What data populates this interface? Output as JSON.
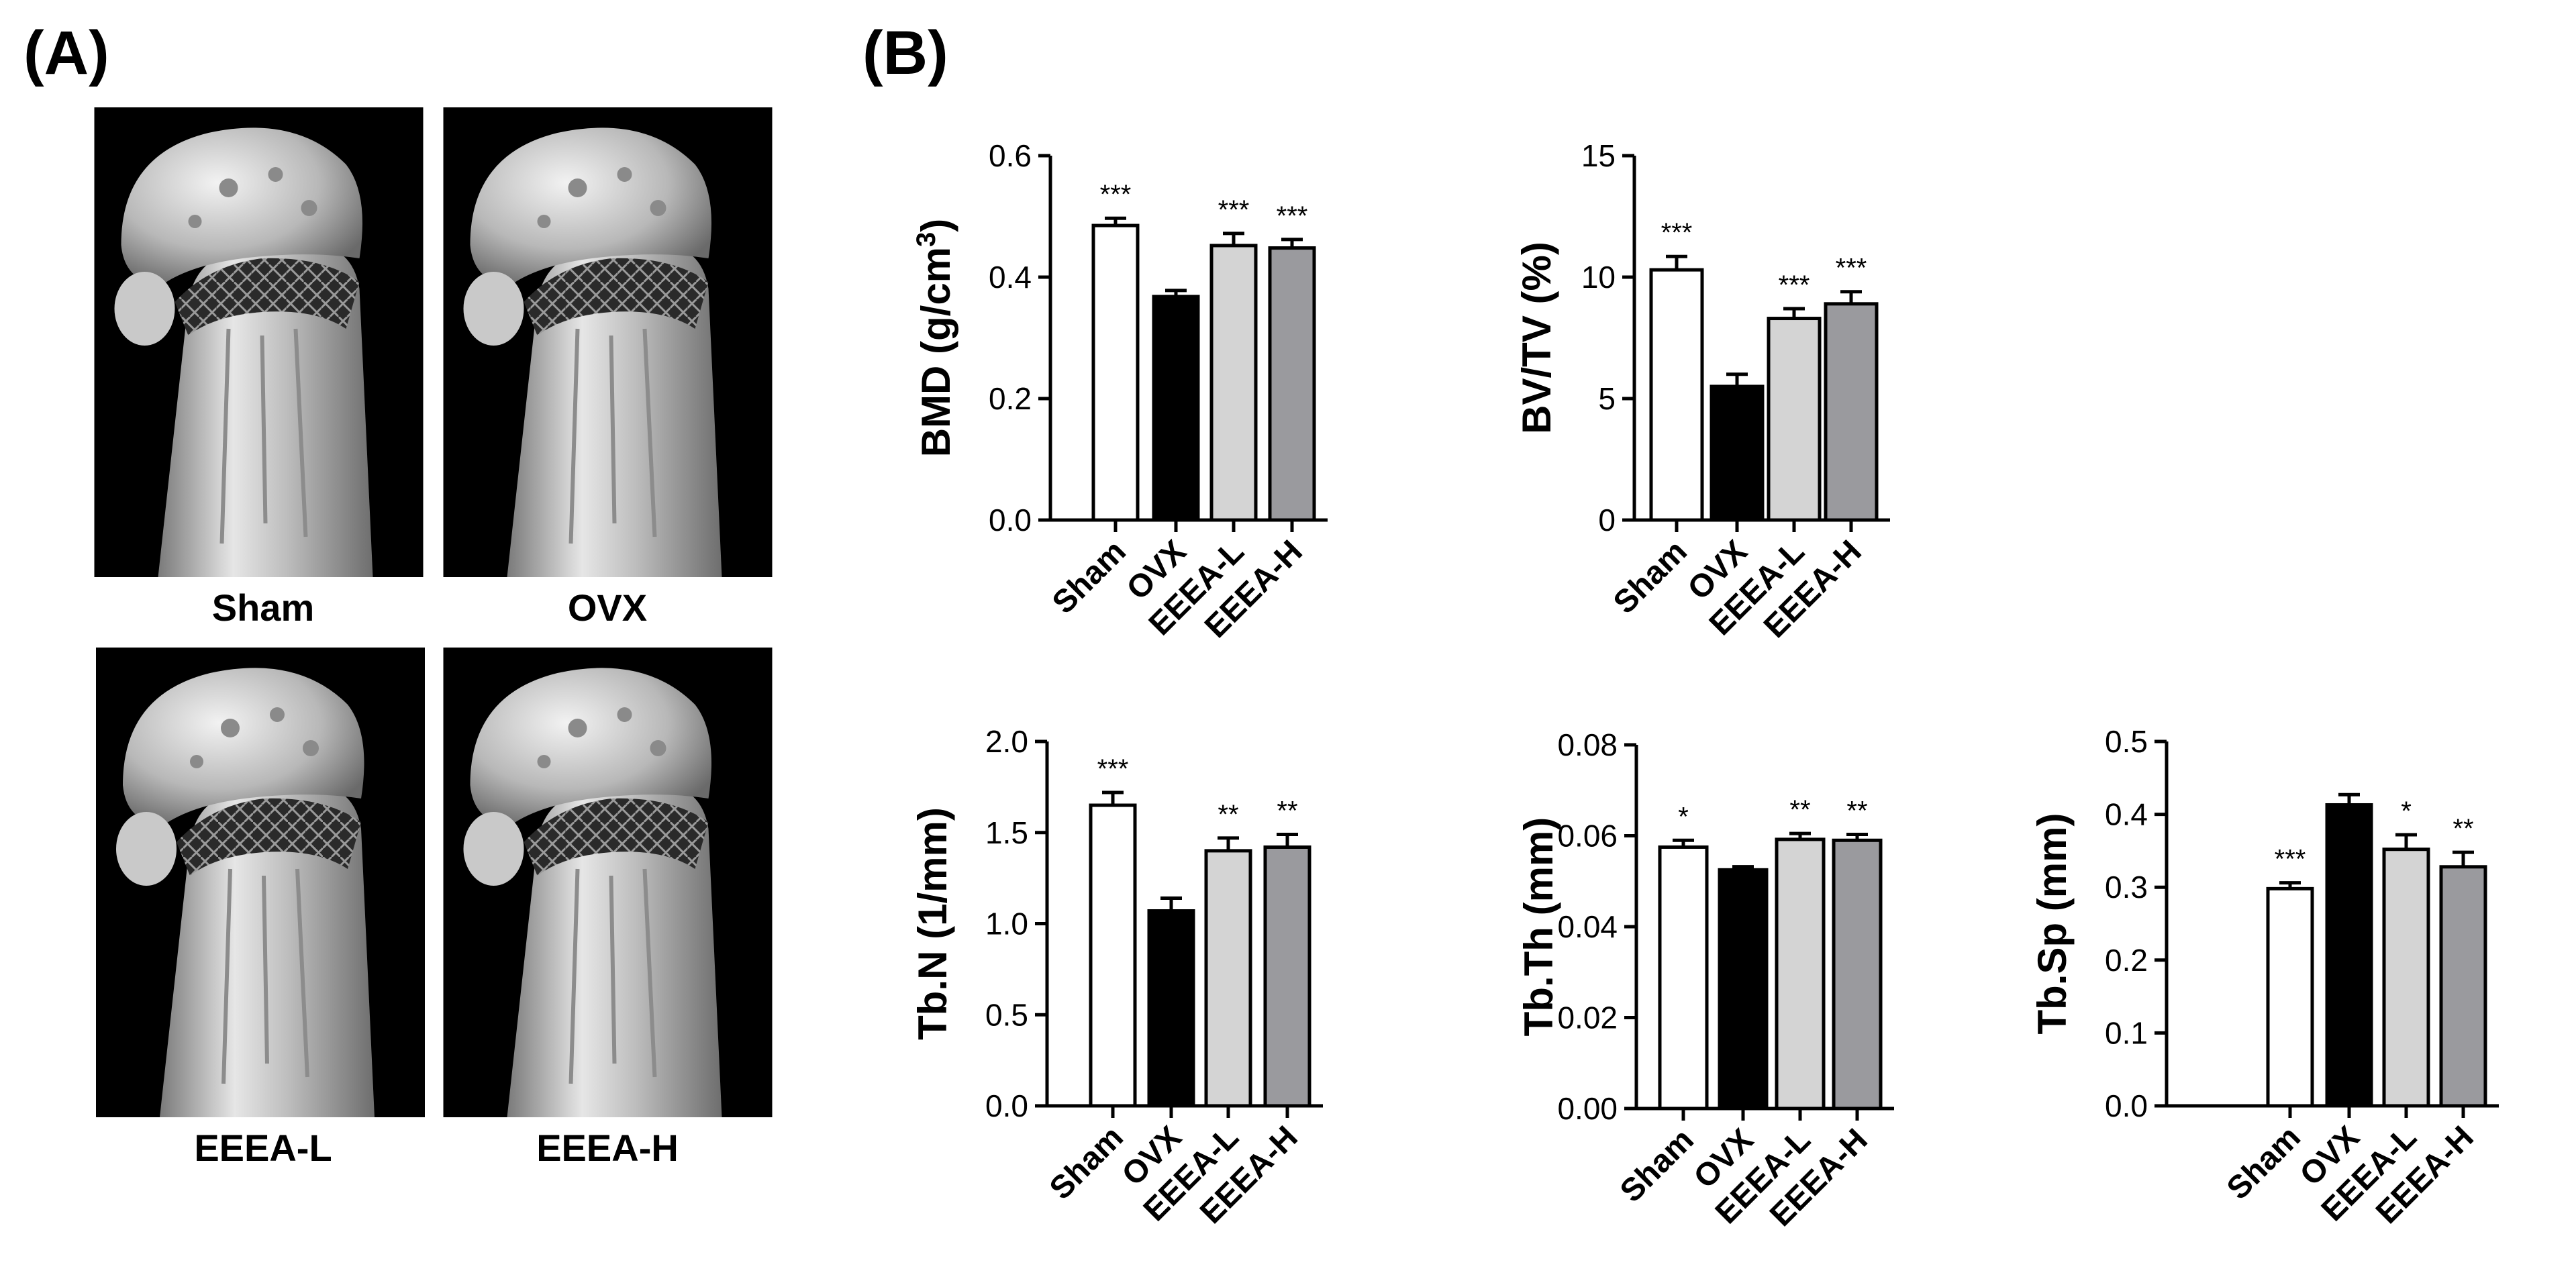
{
  "panels": {
    "a_label": "(A)",
    "b_label": "(B)"
  },
  "micro_ct": {
    "images": [
      {
        "caption": "Sham",
        "icon": "femur-micro-ct-image"
      },
      {
        "caption": "OVX",
        "icon": "femur-micro-ct-image"
      },
      {
        "caption": "EEEA-L",
        "icon": "femur-micro-ct-image"
      },
      {
        "caption": "EEEA-H",
        "icon": "femur-micro-ct-image"
      }
    ]
  },
  "colors": {
    "Sham": "#ffffff",
    "OVX": "#000000",
    "EEEA-L": "#d4d4d4",
    "EEEA-H": "#9a9a9e"
  },
  "chart_data": [
    {
      "type": "bar",
      "ylabel_main": "BMD (g/cm",
      "ylabel_sup": "3",
      "ylabel_tail": ")",
      "categories": [
        "Sham",
        "OVX",
        "EEEA-L",
        "EEEA-H"
      ],
      "values": [
        0.485,
        0.368,
        0.452,
        0.448
      ],
      "errors": [
        0.012,
        0.01,
        0.02,
        0.014
      ],
      "significance": [
        "***",
        "",
        "***",
        "***"
      ],
      "ylim": [
        0,
        0.6
      ],
      "yticks": [
        "0.0",
        "0.2",
        "0.4",
        "0.6"
      ]
    },
    {
      "type": "bar",
      "ylabel": "BV/TV (%)",
      "categories": [
        "Sham",
        "OVX",
        "EEEA-L",
        "EEEA-H"
      ],
      "values": [
        10.3,
        5.5,
        8.3,
        8.9
      ],
      "errors": [
        0.55,
        0.5,
        0.4,
        0.5
      ],
      "significance": [
        "***",
        "",
        "***",
        "***"
      ],
      "ylim": [
        0,
        15
      ],
      "yticks": [
        "0",
        "5",
        "10",
        "15"
      ]
    },
    {
      "type": "bar",
      "ylabel": "Tb.N (1/mm)",
      "categories": [
        "Sham",
        "OVX",
        "EEEA-L",
        "EEEA-H"
      ],
      "values": [
        1.65,
        1.07,
        1.4,
        1.42
      ],
      "errors": [
        0.07,
        0.07,
        0.07,
        0.07
      ],
      "significance": [
        "***",
        "",
        "**",
        "**"
      ],
      "ylim": [
        0,
        2
      ],
      "yticks": [
        "0.0",
        "0.5",
        "1.0",
        "1.5",
        "2.0"
      ]
    },
    {
      "type": "bar",
      "ylabel": "Tb.Th (mm)",
      "categories": [
        "Sham",
        "OVX",
        "EEEA-L",
        "EEEA-H"
      ],
      "values": [
        0.0575,
        0.0525,
        0.0592,
        0.059
      ],
      "errors": [
        0.0015,
        0.0007,
        0.0013,
        0.0013
      ],
      "significance": [
        "*",
        "",
        "**",
        "**"
      ],
      "ylim": [
        0,
        0.08
      ],
      "yticks": [
        "0.00",
        "0.02",
        "0.04",
        "0.06",
        "0.08"
      ]
    },
    {
      "type": "bar",
      "ylabel": "Tb.Sp (mm)",
      "categories": [
        "Sham",
        "OVX",
        "EEEA-L",
        "EEEA-H"
      ],
      "values": [
        0.298,
        0.413,
        0.352,
        0.328
      ],
      "errors": [
        0.008,
        0.014,
        0.02,
        0.02
      ],
      "significance": [
        "***",
        "",
        "*",
        "**"
      ],
      "ylim": [
        0,
        0.5
      ],
      "yticks": [
        "0.0",
        "0.1",
        "0.2",
        "0.3",
        "0.4",
        "0.5"
      ]
    }
  ]
}
